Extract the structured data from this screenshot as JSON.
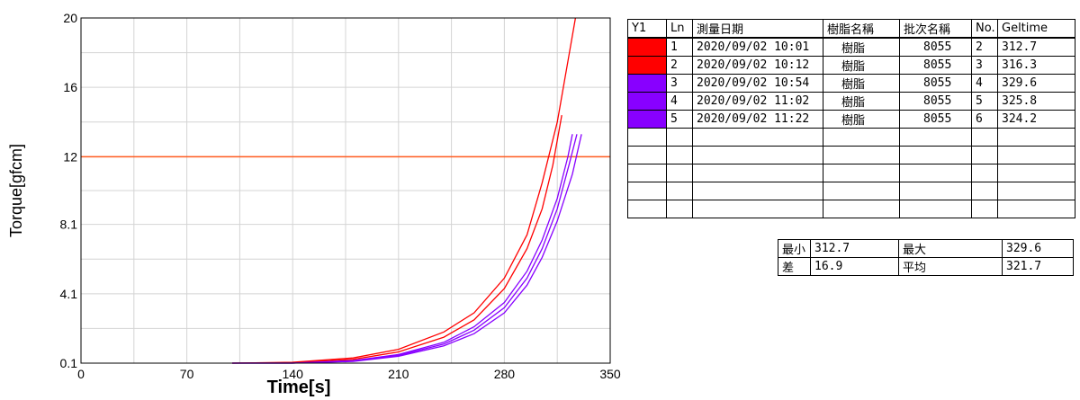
{
  "chart_data": {
    "type": "line",
    "xlabel": "Time[s]",
    "ylabel": "Torque[gfcm]",
    "xlim": [
      0,
      350
    ],
    "ylim": [
      0.1,
      20
    ],
    "x_ticks": [
      "0",
      "70",
      "140",
      "210",
      "280",
      "350"
    ],
    "y_ticks": [
      "0.1",
      "4.1",
      "8.1",
      "12",
      "16",
      "20"
    ],
    "grid": true,
    "threshold": {
      "y": 12,
      "color": "#ff5a1e"
    },
    "series": [
      {
        "color": "#ff0000",
        "x": [
          100,
          140,
          180,
          210,
          240,
          260,
          280,
          295,
          305,
          315,
          322,
          327
        ],
        "y": [
          0.1,
          0.15,
          0.4,
          0.9,
          1.9,
          3.0,
          5.0,
          7.5,
          10.5,
          14.0,
          17.5,
          20.0
        ]
      },
      {
        "color": "#ff0000",
        "x": [
          100,
          140,
          180,
          210,
          240,
          260,
          280,
          295,
          305,
          312,
          318
        ],
        "y": [
          0.1,
          0.12,
          0.32,
          0.75,
          1.6,
          2.6,
          4.4,
          6.7,
          9.0,
          11.5,
          14.4
        ]
      },
      {
        "color": "#8800ff",
        "x": [
          100,
          140,
          180,
          210,
          240,
          260,
          280,
          295,
          305,
          315,
          322,
          325
        ],
        "y": [
          0.1,
          0.1,
          0.25,
          0.6,
          1.3,
          2.2,
          3.6,
          5.4,
          7.2,
          9.6,
          12.0,
          13.3
        ]
      },
      {
        "color": "#8800ff",
        "x": [
          100,
          140,
          180,
          210,
          240,
          260,
          280,
          295,
          305,
          315,
          323,
          328
        ],
        "y": [
          0.1,
          0.1,
          0.22,
          0.55,
          1.2,
          2.0,
          3.3,
          5.0,
          6.7,
          9.0,
          11.6,
          13.3
        ]
      },
      {
        "color": "#8800ff",
        "x": [
          100,
          140,
          180,
          210,
          240,
          260,
          280,
          295,
          305,
          315,
          325,
          331
        ],
        "y": [
          0.1,
          0.1,
          0.2,
          0.5,
          1.1,
          1.8,
          3.0,
          4.6,
          6.2,
          8.3,
          11.0,
          13.3
        ]
      }
    ]
  },
  "runs_table": {
    "headers": [
      "Y1",
      "Ln",
      "測量日期",
      "樹脂名稱",
      "批次名稱",
      "No.",
      "Geltime"
    ],
    "rows": [
      {
        "color": "#ff0000",
        "ln": "1",
        "date": "2020/09/02 10:01",
        "resin": "樹脂",
        "batch": "8055",
        "no": "2",
        "geltime": "312.7"
      },
      {
        "color": "#ff0000",
        "ln": "2",
        "date": "2020/09/02 10:12",
        "resin": "樹脂",
        "batch": "8055",
        "no": "3",
        "geltime": "316.3"
      },
      {
        "color": "#8800ff",
        "ln": "3",
        "date": "2020/09/02 10:54",
        "resin": "樹脂",
        "batch": "8055",
        "no": "4",
        "geltime": "329.6"
      },
      {
        "color": "#8800ff",
        "ln": "4",
        "date": "2020/09/02 11:02",
        "resin": "樹脂",
        "batch": "8055",
        "no": "5",
        "geltime": "325.8"
      },
      {
        "color": "#8800ff",
        "ln": "5",
        "date": "2020/09/02 11:22",
        "resin": "樹脂",
        "batch": "8055",
        "no": "6",
        "geltime": "324.2"
      }
    ],
    "empty_rows": 5
  },
  "stats": {
    "min_label": "最小",
    "min_value": "312.7",
    "max_label": "最大",
    "max_value": "329.6",
    "diff_label": "差",
    "diff_value": "16.9",
    "avg_label": "平均",
    "avg_value": "321.7"
  }
}
